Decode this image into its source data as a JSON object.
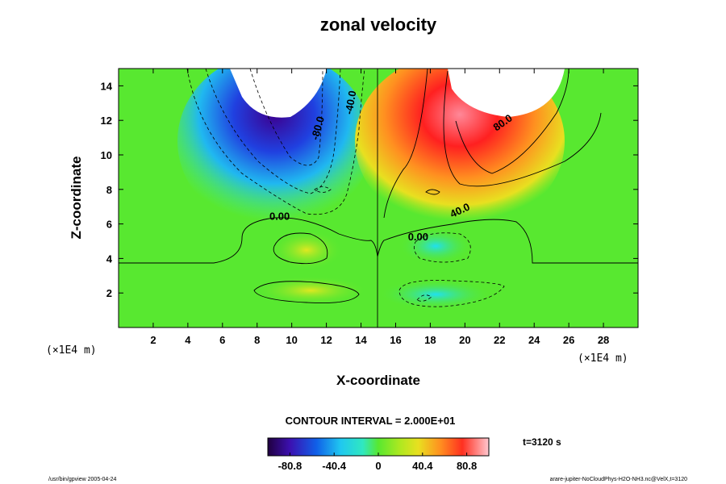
{
  "chart_data": {
    "type": "heatmap",
    "title": "zonal velocity",
    "xlabel": "X-coordinate",
    "ylabel": "Z-coordinate",
    "x_unit": "(×1E4 m)",
    "y_unit": "(×1E4 m)",
    "xlim": [
      0,
      30
    ],
    "ylim": [
      0,
      15
    ],
    "x_ticks": [
      "2",
      "4",
      "6",
      "8",
      "10",
      "12",
      "14",
      "16",
      "18",
      "20",
      "22",
      "24",
      "26",
      "28"
    ],
    "y_ticks": [
      "2",
      "4",
      "6",
      "8",
      "10",
      "12",
      "14"
    ],
    "contour_interval_text": "CONTOUR INTERVAL = 2.000E+01",
    "contour_labels": [
      {
        "text": "-80.0",
        "x": 11.7,
        "z": 11.5,
        "angle": -75
      },
      {
        "text": "-40.0",
        "x": 13.6,
        "z": 13.0,
        "angle": -80
      },
      {
        "text": "0.00",
        "x": 9.3,
        "z": 6.25,
        "angle": 0
      },
      {
        "text": "0.00",
        "x": 17.3,
        "z": 5.05,
        "angle": 0
      },
      {
        "text": "40.0",
        "x": 19.8,
        "z": 6.6,
        "angle": -25
      },
      {
        "text": "80.0",
        "x": 22.3,
        "z": 11.7,
        "angle": -35
      }
    ],
    "colorbar": {
      "range": [
        -101,
        101
      ],
      "tick_labels": [
        "-80.8",
        "-40.4",
        "0",
        "40.4",
        "80.8"
      ],
      "tick_values": [
        -80.8,
        -40.4,
        0,
        40.4,
        80.8
      ]
    },
    "time_label": "t=3120 s",
    "footer_left": "/usr/bin/gpview 2005-04-24",
    "footer_right": "arare-jupiter-NoCloudPhys-H2O-NH3.nc@VelX,t=3120",
    "colors": {
      "neg_strong": "#3c0090",
      "neg_mid": "#1f6fe0",
      "neg_weak": "#30e0e8",
      "zero": "#58e830",
      "pos_weak": "#e8e020",
      "pos_mid": "#ff5020",
      "pos_strong": "#ffb8c8",
      "undefined": "#ffffff"
    }
  }
}
